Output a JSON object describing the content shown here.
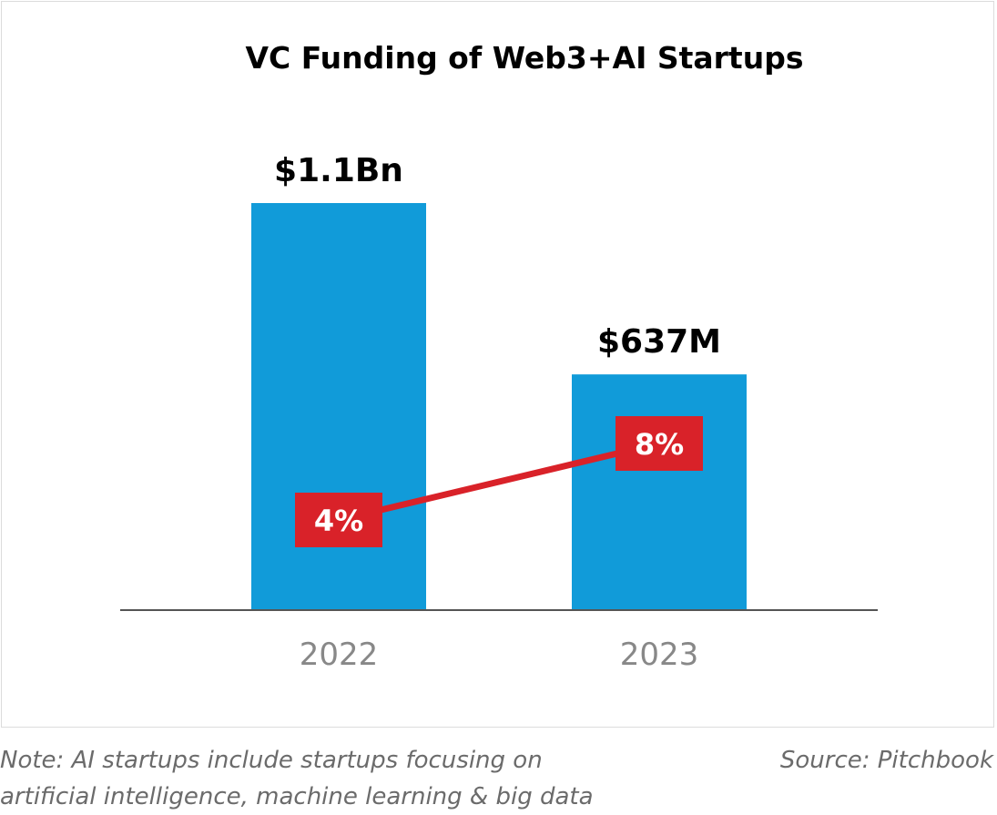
{
  "footer": {
    "note_line1": "Note: AI startups include startups focusing on",
    "note_line2": "artificial intelligence, machine learning & big data",
    "source": "Source: Pitchbook"
  },
  "chart_data": {
    "type": "bar",
    "title": "VC Funding of Web3+AI Startups",
    "categories": [
      "2022",
      "2023"
    ],
    "series": [
      {
        "values": [
          1100,
          637
        ],
        "unit": "$M",
        "data_labels": [
          "$1.1Bn",
          "$637M"
        ],
        "color": "#119bd9"
      },
      {
        "type": "line",
        "values": [
          4,
          8
        ],
        "unit": "%",
        "data_labels": [
          "4%",
          "8%"
        ],
        "color": "#d92229"
      }
    ],
    "ylim": [
      0,
      1100
    ],
    "grid": false,
    "legend": "none",
    "axis_color": "#555555",
    "tick_color": "#888888",
    "label_color": "#000000"
  }
}
